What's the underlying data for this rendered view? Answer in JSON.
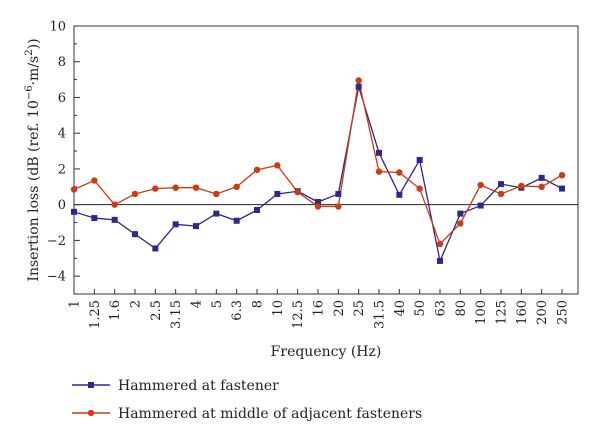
{
  "chart_data": {
    "type": "line",
    "xlabel": "Frequency (Hz)",
    "ylabel_main": "Insertion loss (dB (ref. 10",
    "ylabel_exp1": "−6",
    "ylabel_mid": "·m/s",
    "ylabel_exp2": "2",
    "ylabel_end": "))",
    "ylim": [
      -5,
      10
    ],
    "yticks": [
      "10",
      "8",
      "6",
      "4",
      "2",
      "0",
      "−2",
      "−4"
    ],
    "ytick_values": [
      10,
      8,
      6,
      4,
      2,
      0,
      -2,
      -4
    ],
    "categories": [
      "1",
      "1.25",
      "1.6",
      "2",
      "2.5",
      "3.15",
      "4",
      "5",
      "6.3",
      "8",
      "10",
      "12.5",
      "16",
      "20",
      "25",
      "31.5",
      "40",
      "50",
      "63",
      "80",
      "100",
      "125",
      "160",
      "200",
      "250"
    ],
    "grid": false,
    "legend_position": "bottom",
    "series": [
      {
        "name": "Hammered at fastener",
        "color": "#2b2a8c",
        "marker": "square",
        "values": [
          -0.4,
          -0.75,
          -0.85,
          -1.65,
          -2.45,
          -1.1,
          -1.2,
          -0.5,
          -0.9,
          -0.3,
          0.6,
          0.75,
          0.15,
          0.6,
          6.6,
          2.9,
          0.55,
          2.5,
          -3.15,
          -0.5,
          -0.05,
          1.15,
          0.95,
          1.5,
          0.9
        ]
      },
      {
        "name": "Hammered at middle of adjacent fasteners",
        "color": "#cc3b12",
        "marker": "circle",
        "values": [
          0.85,
          1.35,
          0.0,
          0.6,
          0.9,
          0.95,
          0.95,
          0.6,
          1.0,
          1.95,
          2.2,
          0.7,
          -0.1,
          -0.1,
          6.95,
          1.85,
          1.8,
          0.9,
          -2.2,
          -1.05,
          1.1,
          0.6,
          1.05,
          1.0,
          1.65
        ]
      }
    ]
  }
}
